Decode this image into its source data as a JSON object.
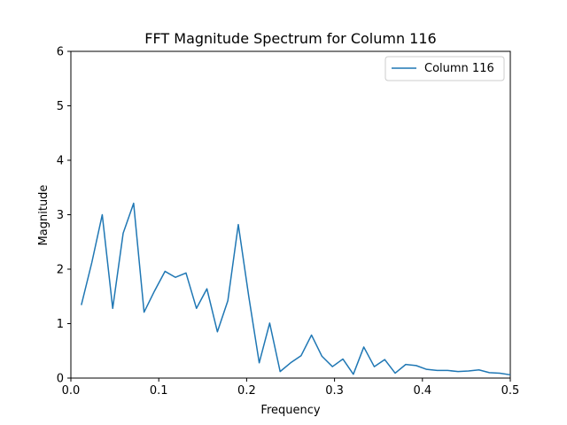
{
  "chart_data": {
    "type": "line",
    "title": "FFT Magnitude Spectrum for Column 116",
    "xlabel": "Frequency",
    "ylabel": "Magnitude",
    "xlim": [
      0.0,
      0.5
    ],
    "ylim": [
      0,
      6
    ],
    "xticks": [
      "0.0",
      "0.1",
      "0.2",
      "0.3",
      "0.4",
      "0.5"
    ],
    "yticks": [
      "0",
      "1",
      "2",
      "3",
      "4",
      "5",
      "6"
    ],
    "grid": false,
    "legend_position": "top-right",
    "series": [
      {
        "name": "Column 116",
        "color": "#1f77b4",
        "x": [
          0.0119,
          0.0238,
          0.0357,
          0.0476,
          0.0595,
          0.0714,
          0.0833,
          0.0952,
          0.1071,
          0.119,
          0.131,
          0.1429,
          0.1548,
          0.1667,
          0.1786,
          0.1905,
          0.2024,
          0.2143,
          0.2262,
          0.2381,
          0.25,
          0.2619,
          0.2738,
          0.2857,
          0.2976,
          0.3095,
          0.3214,
          0.3333,
          0.3452,
          0.3571,
          0.369,
          0.381,
          0.3929,
          0.4048,
          0.4167,
          0.4286,
          0.4405,
          0.4524,
          0.4643,
          0.4762,
          0.4881,
          0.5
        ],
        "y": [
          1.34,
          2.12,
          3.0,
          1.28,
          2.66,
          3.21,
          1.21,
          1.6,
          1.96,
          1.85,
          1.93,
          1.28,
          1.64,
          0.85,
          1.42,
          2.82,
          1.5,
          0.28,
          1.01,
          0.12,
          0.28,
          0.41,
          0.79,
          0.4,
          0.21,
          0.35,
          0.07,
          0.57,
          0.21,
          0.34,
          0.09,
          0.25,
          0.23,
          0.16,
          0.14,
          0.14,
          0.12,
          0.13,
          0.15,
          0.1,
          0.09,
          0.06
        ]
      }
    ]
  }
}
